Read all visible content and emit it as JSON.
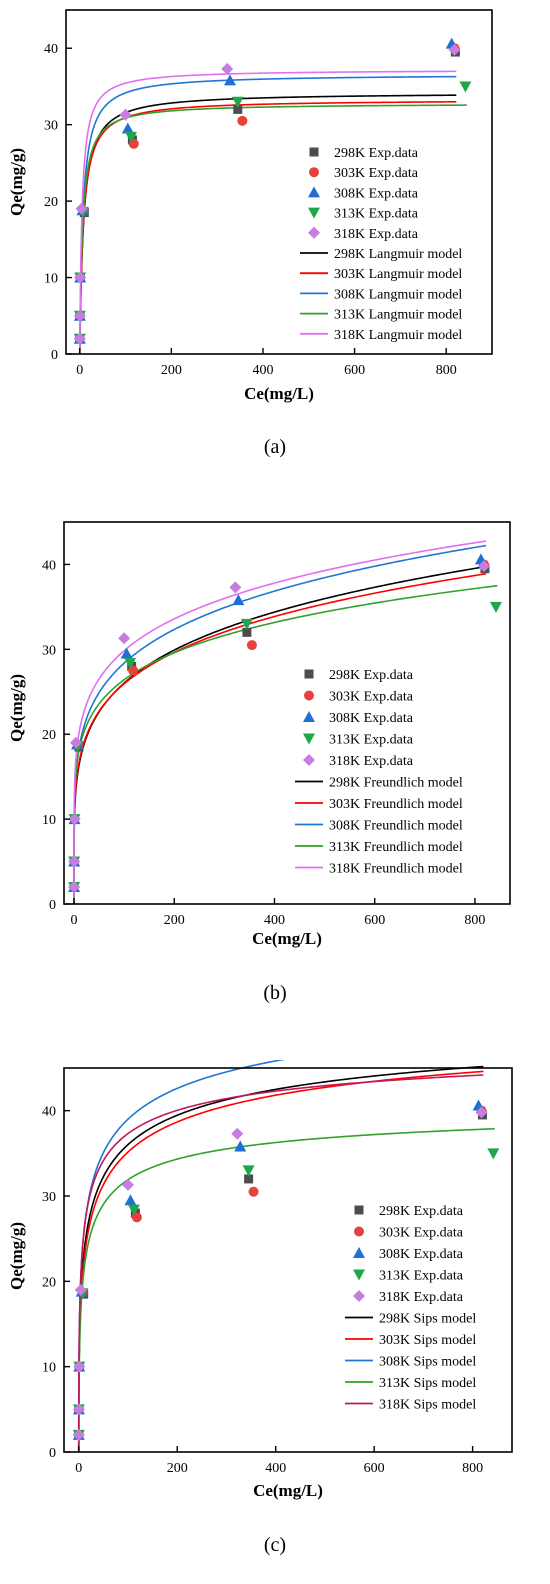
{
  "chart_data": [
    {
      "type": "scatter",
      "panel_label": "(a)",
      "xlabel": "Ce(mg/L)",
      "ylabel": "Qe(mg/g)",
      "xlim": [
        -30,
        900
      ],
      "ylim": [
        0,
        45
      ],
      "xticks": [
        0,
        200,
        400,
        600,
        800
      ],
      "yticks": [
        0,
        10,
        20,
        30,
        40
      ],
      "grid": false,
      "legend_position": "right",
      "scatter_series": [
        {
          "name": "298K Exp.data",
          "marker": "square",
          "color": "#4d4d4d",
          "points": [
            [
              0.1,
              2.0
            ],
            [
              0.3,
              5.0
            ],
            [
              1.0,
              10.0
            ],
            [
              10,
              18.5
            ],
            [
              115,
              28.0
            ],
            [
              345,
              32.0
            ],
            [
              820,
              39.5
            ]
          ]
        },
        {
          "name": "303K Exp.data",
          "marker": "circle",
          "color": "#e8413a",
          "points": [
            [
              0.1,
              2.0
            ],
            [
              0.3,
              5.0
            ],
            [
              1.0,
              10.0
            ],
            [
              8,
              18.7
            ],
            [
              118,
              27.5
            ],
            [
              355,
              30.5
            ],
            [
              818,
              40.0
            ]
          ]
        },
        {
          "name": "308K Exp.data",
          "marker": "triangle-up",
          "color": "#1f6fd6",
          "points": [
            [
              0.1,
              2.0
            ],
            [
              0.3,
              5.0
            ],
            [
              1.0,
              10.0
            ],
            [
              6,
              18.8
            ],
            [
              105,
              29.5
            ],
            [
              328,
              35.8
            ],
            [
              812,
              40.6
            ]
          ]
        },
        {
          "name": "313K Exp.data",
          "marker": "triangle-down",
          "color": "#1fa84a",
          "points": [
            [
              0.1,
              2.0
            ],
            [
              0.3,
              5.0
            ],
            [
              1.0,
              10.0
            ],
            [
              7,
              18.6
            ],
            [
              112,
              28.4
            ],
            [
              345,
              33.0
            ],
            [
              842,
              35.0
            ]
          ]
        },
        {
          "name": "318K Exp.data",
          "marker": "diamond",
          "color": "#c77de0",
          "points": [
            [
              0.1,
              2.0
            ],
            [
              0.3,
              5.0
            ],
            [
              1.0,
              10.0
            ],
            [
              4,
              19.0
            ],
            [
              100,
              31.3
            ],
            [
              322,
              37.3
            ],
            [
              818,
              39.8
            ]
          ]
        }
      ],
      "model_series": [
        {
          "name": "298K Langmuir model",
          "color": "#000000",
          "model": "langmuir",
          "params": {
            "qm": 34.2,
            "K": 0.12
          },
          "xmax": 822
        },
        {
          "name": "303K Langmuir model",
          "color": "#ff0000",
          "model": "langmuir",
          "params": {
            "qm": 33.3,
            "K": 0.13
          },
          "xmax": 822
        },
        {
          "name": "308K Langmuir model",
          "color": "#1f77d4",
          "model": "langmuir",
          "params": {
            "qm": 36.6,
            "K": 0.14
          },
          "xmax": 822
        },
        {
          "name": "313K Langmuir model",
          "color": "#33a02c",
          "model": "langmuir",
          "params": {
            "qm": 32.8,
            "K": 0.16
          },
          "xmax": 845
        },
        {
          "name": "318K Langmuir model",
          "color": "#e070f0",
          "model": "langmuir",
          "params": {
            "qm": 37.2,
            "K": 0.2
          },
          "xmax": 822
        }
      ]
    },
    {
      "type": "scatter",
      "panel_label": "(b)",
      "xlabel": "Ce(mg/L)",
      "ylabel": "Qe(mg/g)",
      "xlim": [
        -20,
        870
      ],
      "ylim": [
        0,
        45
      ],
      "xticks": [
        0,
        200,
        400,
        600,
        800
      ],
      "yticks": [
        0,
        10,
        20,
        30,
        40
      ],
      "grid": false,
      "legend_position": "right",
      "scatter_series": [
        {
          "name": "298K Exp.data",
          "marker": "square",
          "color": "#4d4d4d",
          "points": [
            [
              0.1,
              2.0
            ],
            [
              0.3,
              5.0
            ],
            [
              1.0,
              10.0
            ],
            [
              10,
              18.5
            ],
            [
              115,
              28.0
            ],
            [
              345,
              32.0
            ],
            [
              820,
              39.5
            ]
          ]
        },
        {
          "name": "303K Exp.data",
          "marker": "circle",
          "color": "#e8413a",
          "points": [
            [
              0.1,
              2.0
            ],
            [
              0.3,
              5.0
            ],
            [
              1.0,
              10.0
            ],
            [
              8,
              18.7
            ],
            [
              118,
              27.5
            ],
            [
              355,
              30.5
            ],
            [
              818,
              40.0
            ]
          ]
        },
        {
          "name": "308K Exp.data",
          "marker": "triangle-up",
          "color": "#1f6fd6",
          "points": [
            [
              0.1,
              2.0
            ],
            [
              0.3,
              5.0
            ],
            [
              1.0,
              10.0
            ],
            [
              6,
              18.8
            ],
            [
              105,
              29.5
            ],
            [
              328,
              35.8
            ],
            [
              812,
              40.6
            ]
          ]
        },
        {
          "name": "313K Exp.data",
          "marker": "triangle-down",
          "color": "#1fa84a",
          "points": [
            [
              0.1,
              2.0
            ],
            [
              0.3,
              5.0
            ],
            [
              1.0,
              10.0
            ],
            [
              7,
              18.6
            ],
            [
              112,
              28.4
            ],
            [
              345,
              33.0
            ],
            [
              842,
              35.0
            ]
          ]
        },
        {
          "name": "318K Exp.data",
          "marker": "diamond",
          "color": "#c77de0",
          "points": [
            [
              0.1,
              2.0
            ],
            [
              0.3,
              5.0
            ],
            [
              1.0,
              10.0
            ],
            [
              4,
              19.0
            ],
            [
              100,
              31.3
            ],
            [
              322,
              37.3
            ],
            [
              818,
              39.8
            ]
          ]
        }
      ],
      "model_series": [
        {
          "name": "298K Freundlich model",
          "color": "#000000",
          "model": "freundlich",
          "params": {
            "KF": 10.3,
            "n": 4.97
          },
          "xmax": 822
        },
        {
          "name": "303K Freundlich model",
          "color": "#ff0000",
          "model": "freundlich",
          "params": {
            "KF": 10.7,
            "n": 5.2
          },
          "xmax": 822
        },
        {
          "name": "308K Freundlich model",
          "color": "#1f77d4",
          "model": "freundlich",
          "params": {
            "KF": 11.9,
            "n": 5.3
          },
          "xmax": 822
        },
        {
          "name": "313K Freundlich model",
          "color": "#33a02c",
          "model": "freundlich",
          "params": {
            "KF": 12.4,
            "n": 6.09
          },
          "xmax": 845
        },
        {
          "name": "318K Freundlich model",
          "color": "#e070f0",
          "model": "freundlich",
          "params": {
            "KF": 13.6,
            "n": 5.86
          },
          "xmax": 822
        }
      ]
    },
    {
      "type": "scatter",
      "panel_label": "(c)",
      "xlabel": "Ce(mg/L)",
      "ylabel": "Qe(mg/g)",
      "xlim": [
        -30,
        880
      ],
      "ylim": [
        0,
        45
      ],
      "xticks": [
        0,
        200,
        400,
        600,
        800
      ],
      "yticks": [
        0,
        10,
        20,
        30,
        40
      ],
      "grid": false,
      "legend_position": "right",
      "scatter_series": [
        {
          "name": "298K Exp.data",
          "marker": "square",
          "color": "#4d4d4d",
          "points": [
            [
              0.1,
              2.0
            ],
            [
              0.3,
              5.0
            ],
            [
              1.0,
              10.0
            ],
            [
              10,
              18.5
            ],
            [
              115,
              28.0
            ],
            [
              345,
              32.0
            ],
            [
              820,
              39.5
            ]
          ]
        },
        {
          "name": "303K Exp.data",
          "marker": "circle",
          "color": "#e8413a",
          "points": [
            [
              0.1,
              2.0
            ],
            [
              0.3,
              5.0
            ],
            [
              1.0,
              10.0
            ],
            [
              8,
              18.7
            ],
            [
              118,
              27.5
            ],
            [
              355,
              30.5
            ],
            [
              818,
              40.0
            ]
          ]
        },
        {
          "name": "308K Exp.data",
          "marker": "triangle-up",
          "color": "#1f6fd6",
          "points": [
            [
              0.1,
              2.0
            ],
            [
              0.3,
              5.0
            ],
            [
              1.0,
              10.0
            ],
            [
              6,
              18.8
            ],
            [
              105,
              29.5
            ],
            [
              328,
              35.8
            ],
            [
              812,
              40.6
            ]
          ]
        },
        {
          "name": "313K Exp.data",
          "marker": "triangle-down",
          "color": "#1fa84a",
          "points": [
            [
              0.1,
              2.0
            ],
            [
              0.3,
              5.0
            ],
            [
              1.0,
              10.0
            ],
            [
              7,
              18.6
            ],
            [
              112,
              28.4
            ],
            [
              345,
              33.0
            ],
            [
              842,
              35.0
            ]
          ]
        },
        {
          "name": "318K Exp.data",
          "marker": "diamond",
          "color": "#c77de0",
          "points": [
            [
              0.1,
              2.0
            ],
            [
              0.3,
              5.0
            ],
            [
              1.0,
              10.0
            ],
            [
              4,
              19.0
            ],
            [
              100,
              31.3
            ],
            [
              322,
              37.3
            ],
            [
              818,
              39.8
            ]
          ]
        }
      ],
      "model_series": [
        {
          "name": "298K Sips model",
          "color": "#000000",
          "model": "sips",
          "params": {
            "qm": 55,
            "K": 0.046,
            "n": 0.42
          },
          "xmax": 822
        },
        {
          "name": "303K Sips model",
          "color": "#ff0000",
          "model": "sips",
          "params": {
            "qm": 55,
            "K": 0.039,
            "n": 0.42
          },
          "xmax": 822
        },
        {
          "name": "308K Sips model",
          "color": "#1f77d4",
          "model": "sips",
          "params": {
            "qm": 60,
            "K": 0.047,
            "n": 0.4
          },
          "xmax": 822
        },
        {
          "name": "313K Sips model",
          "color": "#33a02c",
          "model": "sips",
          "params": {
            "qm": 42,
            "K": 0.1,
            "n": 0.5
          },
          "xmax": 845
        },
        {
          "name": "318K Sips model",
          "color": "#c2185b",
          "model": "sips",
          "params": {
            "qm": 50,
            "K": 0.11,
            "n": 0.45
          },
          "xmax": 822
        }
      ]
    }
  ]
}
